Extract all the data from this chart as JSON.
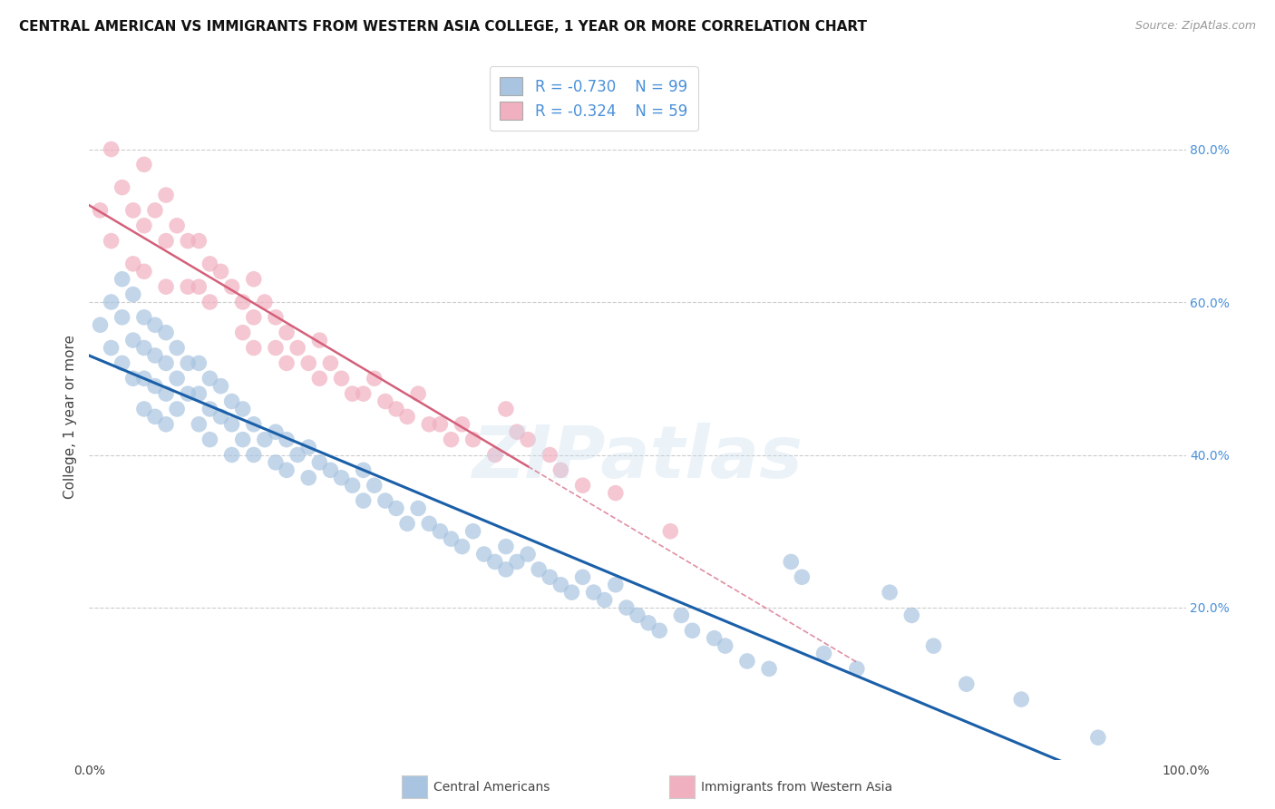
{
  "title": "CENTRAL AMERICAN VS IMMIGRANTS FROM WESTERN ASIA COLLEGE, 1 YEAR OR MORE CORRELATION CHART",
  "source": "Source: ZipAtlas.com",
  "ylabel": "College, 1 year or more",
  "xlim": [
    0.0,
    1.0
  ],
  "ylim": [
    0.0,
    0.9
  ],
  "y_tick_labels_right": [
    "20.0%",
    "40.0%",
    "60.0%",
    "80.0%"
  ],
  "y_tick_vals_right": [
    0.2,
    0.4,
    0.6,
    0.8
  ],
  "legend_blue_r": "R = -0.730",
  "legend_blue_n": "N = 99",
  "legend_pink_r": "R = -0.324",
  "legend_pink_n": "N = 59",
  "blue_color": "#a8c4e0",
  "blue_line_color": "#1a5fa8",
  "pink_color": "#f0b0c0",
  "pink_line_color": "#d4607a",
  "watermark": "ZIPatlas",
  "legend_label_blue": "Central Americans",
  "legend_label_pink": "Immigrants from Western Asia",
  "blue_x": [
    0.01,
    0.02,
    0.02,
    0.03,
    0.03,
    0.03,
    0.04,
    0.04,
    0.04,
    0.05,
    0.05,
    0.05,
    0.05,
    0.06,
    0.06,
    0.06,
    0.06,
    0.07,
    0.07,
    0.07,
    0.07,
    0.08,
    0.08,
    0.08,
    0.09,
    0.09,
    0.1,
    0.1,
    0.1,
    0.11,
    0.11,
    0.11,
    0.12,
    0.12,
    0.13,
    0.13,
    0.13,
    0.14,
    0.14,
    0.15,
    0.15,
    0.16,
    0.17,
    0.17,
    0.18,
    0.18,
    0.19,
    0.2,
    0.2,
    0.21,
    0.22,
    0.23,
    0.24,
    0.25,
    0.25,
    0.26,
    0.27,
    0.28,
    0.29,
    0.3,
    0.31,
    0.32,
    0.33,
    0.34,
    0.35,
    0.36,
    0.37,
    0.38,
    0.38,
    0.39,
    0.4,
    0.41,
    0.42,
    0.43,
    0.44,
    0.45,
    0.46,
    0.47,
    0.48,
    0.49,
    0.5,
    0.51,
    0.52,
    0.54,
    0.55,
    0.57,
    0.58,
    0.6,
    0.62,
    0.64,
    0.65,
    0.67,
    0.7,
    0.73,
    0.75,
    0.77,
    0.8,
    0.85,
    0.92
  ],
  "blue_y": [
    0.57,
    0.6,
    0.54,
    0.63,
    0.58,
    0.52,
    0.61,
    0.55,
    0.5,
    0.58,
    0.54,
    0.5,
    0.46,
    0.57,
    0.53,
    0.49,
    0.45,
    0.56,
    0.52,
    0.48,
    0.44,
    0.54,
    0.5,
    0.46,
    0.52,
    0.48,
    0.52,
    0.48,
    0.44,
    0.5,
    0.46,
    0.42,
    0.49,
    0.45,
    0.47,
    0.44,
    0.4,
    0.46,
    0.42,
    0.44,
    0.4,
    0.42,
    0.43,
    0.39,
    0.42,
    0.38,
    0.4,
    0.41,
    0.37,
    0.39,
    0.38,
    0.37,
    0.36,
    0.38,
    0.34,
    0.36,
    0.34,
    0.33,
    0.31,
    0.33,
    0.31,
    0.3,
    0.29,
    0.28,
    0.3,
    0.27,
    0.26,
    0.28,
    0.25,
    0.26,
    0.27,
    0.25,
    0.24,
    0.23,
    0.22,
    0.24,
    0.22,
    0.21,
    0.23,
    0.2,
    0.19,
    0.18,
    0.17,
    0.19,
    0.17,
    0.16,
    0.15,
    0.13,
    0.12,
    0.26,
    0.24,
    0.14,
    0.12,
    0.22,
    0.19,
    0.15,
    0.1,
    0.08,
    0.03
  ],
  "pink_x": [
    0.01,
    0.02,
    0.02,
    0.03,
    0.04,
    0.04,
    0.05,
    0.05,
    0.05,
    0.06,
    0.07,
    0.07,
    0.07,
    0.08,
    0.09,
    0.09,
    0.1,
    0.1,
    0.11,
    0.11,
    0.12,
    0.13,
    0.14,
    0.14,
    0.15,
    0.15,
    0.15,
    0.16,
    0.17,
    0.17,
    0.18,
    0.18,
    0.19,
    0.2,
    0.21,
    0.21,
    0.22,
    0.23,
    0.24,
    0.25,
    0.26,
    0.27,
    0.28,
    0.29,
    0.3,
    0.31,
    0.32,
    0.33,
    0.34,
    0.35,
    0.37,
    0.38,
    0.39,
    0.4,
    0.42,
    0.43,
    0.45,
    0.48,
    0.53
  ],
  "pink_y": [
    0.72,
    0.8,
    0.68,
    0.75,
    0.72,
    0.65,
    0.78,
    0.7,
    0.64,
    0.72,
    0.74,
    0.68,
    0.62,
    0.7,
    0.68,
    0.62,
    0.68,
    0.62,
    0.65,
    0.6,
    0.64,
    0.62,
    0.6,
    0.56,
    0.63,
    0.58,
    0.54,
    0.6,
    0.58,
    0.54,
    0.56,
    0.52,
    0.54,
    0.52,
    0.55,
    0.5,
    0.52,
    0.5,
    0.48,
    0.48,
    0.5,
    0.47,
    0.46,
    0.45,
    0.48,
    0.44,
    0.44,
    0.42,
    0.44,
    0.42,
    0.4,
    0.46,
    0.43,
    0.42,
    0.4,
    0.38,
    0.36,
    0.35,
    0.3
  ],
  "grid_color": "#cccccc",
  "background_color": "#ffffff",
  "title_fontsize": 11,
  "axis_label_fontsize": 11,
  "tick_fontsize": 10
}
